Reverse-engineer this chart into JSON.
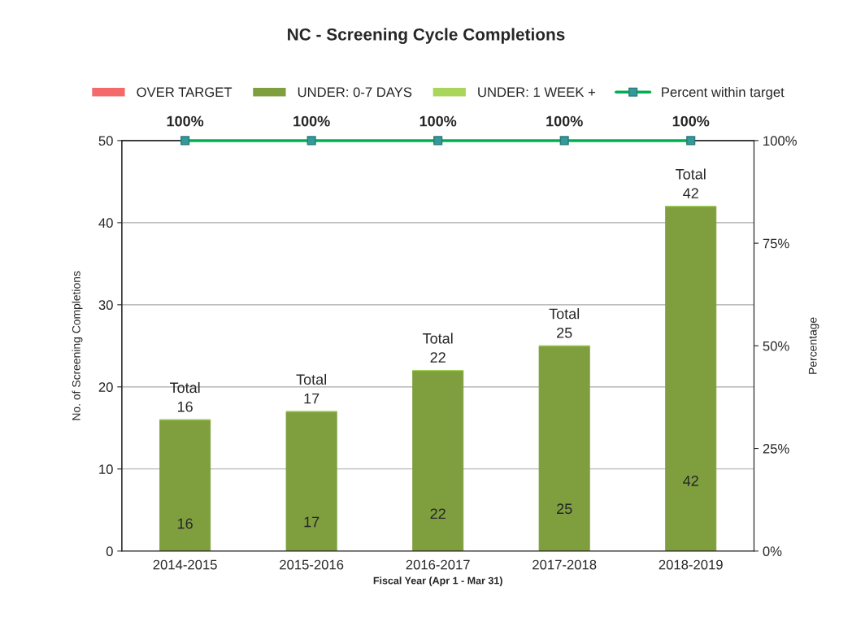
{
  "chart_data": {
    "type": "bar",
    "title": "NC - Screening Cycle Completions",
    "xlabel": "Fiscal Year (Apr 1 - Mar 31)",
    "ylabel": "No. of Screening Completions",
    "y2label": "Percentage",
    "categories": [
      "2014-2015",
      "2015-2016",
      "2016-2017",
      "2017-2018",
      "2018-2019"
    ],
    "stacked": true,
    "series": [
      {
        "name": "OVER TARGET",
        "color": "#f46a6a",
        "values": [
          0,
          0,
          0,
          0,
          0
        ]
      },
      {
        "name": "UNDER: 0-7 DAYS",
        "color": "#7f9f3f",
        "values": [
          16,
          17,
          22,
          25,
          42
        ],
        "value_labels": [
          "16",
          "17",
          "22",
          "25",
          "42"
        ]
      },
      {
        "name": "UNDER: 1 WEEK +",
        "color": "#a9d65a",
        "values": [
          0,
          0,
          0,
          0,
          0
        ]
      },
      {
        "name": "Percent within target",
        "type": "line",
        "axis": "y2",
        "color": "#00b050",
        "marker": "square",
        "values": [
          100,
          100,
          100,
          100,
          100
        ],
        "value_labels": [
          "100%",
          "100%",
          "100%",
          "100%",
          "100%"
        ]
      }
    ],
    "totals": [
      "Total\n16",
      "Total\n17",
      "Total\n22",
      "Total\n25",
      "Total\n42"
    ],
    "ylim": [
      0,
      50
    ],
    "yticks": [
      0,
      10,
      20,
      30,
      40,
      50
    ],
    "y2lim": [
      0,
      100
    ],
    "y2ticks": [
      {
        "value": 0,
        "label": "0%"
      },
      {
        "value": 25,
        "label": "25%"
      },
      {
        "value": 50,
        "label": "50%"
      },
      {
        "value": 75,
        "label": "75%"
      },
      {
        "value": 100,
        "label": "100%"
      }
    ],
    "grid": "y",
    "legend": "top"
  }
}
